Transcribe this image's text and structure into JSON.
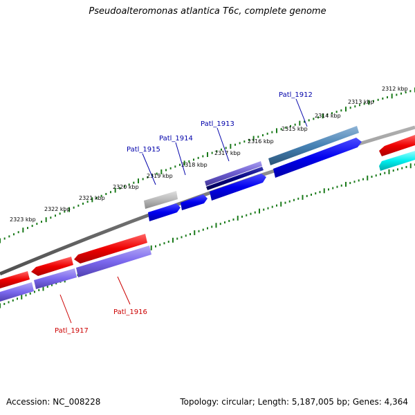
{
  "title": "Pseudoalteromonas atlantica T6c, complete genome",
  "footer": {
    "accession_label": "Accession:",
    "accession": "NC_008228",
    "topology_label": "Topology:",
    "topology": "circular",
    "length_label": "Length:",
    "length": "5,187,005 bp",
    "genes_label": "Genes:",
    "genes": "4,364"
  },
  "scale_ticks": [
    {
      "label": "2312 kbp"
    },
    {
      "label": "2313 kbp"
    },
    {
      "label": "2314 kbp"
    },
    {
      "label": "2315 kbp"
    },
    {
      "label": "2316 kbp"
    },
    {
      "label": "2317 kbp"
    },
    {
      "label": "2318 kbp"
    },
    {
      "label": "2319 kbp"
    },
    {
      "label": "2320 kbp"
    },
    {
      "label": "2321 kbp"
    },
    {
      "label": "2322 kbp"
    },
    {
      "label": "2323 kbp"
    }
  ],
  "gene_labels": {
    "upper": [
      {
        "name": "Patl_1912",
        "color": "#0000aa"
      },
      {
        "name": "Patl_1913",
        "color": "#0000aa"
      },
      {
        "name": "Patl_1914",
        "color": "#0000aa"
      },
      {
        "name": "Patl_1915",
        "color": "#0000aa"
      }
    ],
    "lower": [
      {
        "name": "Patl_1916",
        "color": "#cc0000"
      },
      {
        "name": "Patl_1917",
        "color": "#cc0000"
      }
    ]
  },
  "colors": {
    "backbone": "#808080",
    "tick": "#1a7a1a",
    "forward_cds": "#0000ee",
    "reverse_cds": "#ee0000",
    "forward_annot_steel": "#4682b4",
    "forward_annot_slate": "#6a5acd",
    "forward_annot_navy": "#000080",
    "forward_annot_grey": "#b0b0b0",
    "reverse_annot_slate": "#7b68ee",
    "cyan": "#00ffff"
  }
}
